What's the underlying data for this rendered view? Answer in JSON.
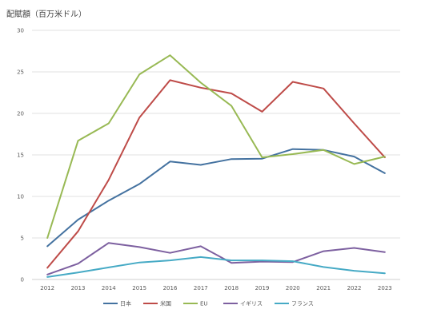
{
  "chart_data": {
    "type": "line",
    "title": "配賦額（百万米ドル）",
    "xlabel": "",
    "ylabel": "",
    "x": [
      "2012",
      "2013",
      "2014",
      "2015",
      "2016",
      "2017",
      "2018",
      "2019",
      "2020",
      "2021",
      "2022",
      "2023"
    ],
    "ylim": [
      0,
      30
    ],
    "yticks": [
      0,
      5,
      10,
      15,
      20,
      25,
      30
    ],
    "grid": true,
    "legend_position": "bottom",
    "series": [
      {
        "name": "日本",
        "color": "#4472a0",
        "values": [
          4.0,
          7.2,
          9.5,
          11.5,
          14.2,
          13.8,
          14.5,
          14.55,
          15.7,
          15.6,
          14.8,
          12.8
        ]
      },
      {
        "name": "米国",
        "color": "#be4b48",
        "values": [
          1.4,
          5.8,
          12.0,
          19.5,
          24.0,
          23.1,
          22.4,
          20.2,
          23.8,
          23.0,
          18.8,
          14.7
        ]
      },
      {
        "name": "EU",
        "color": "#98b954",
        "values": [
          5.0,
          16.7,
          18.8,
          24.7,
          27.0,
          23.7,
          20.9,
          14.7,
          15.1,
          15.6,
          13.9,
          14.8
        ]
      },
      {
        "name": "イギリス",
        "color": "#7d60a0",
        "values": [
          0.6,
          1.9,
          4.4,
          3.9,
          3.2,
          4.0,
          2.0,
          2.15,
          2.1,
          3.4,
          3.8,
          3.3
        ]
      },
      {
        "name": "フランス",
        "color": "#46aac5",
        "values": [
          0.3,
          0.85,
          1.45,
          2.05,
          2.3,
          2.7,
          2.3,
          2.3,
          2.2,
          1.5,
          1.05,
          0.75
        ]
      }
    ]
  }
}
